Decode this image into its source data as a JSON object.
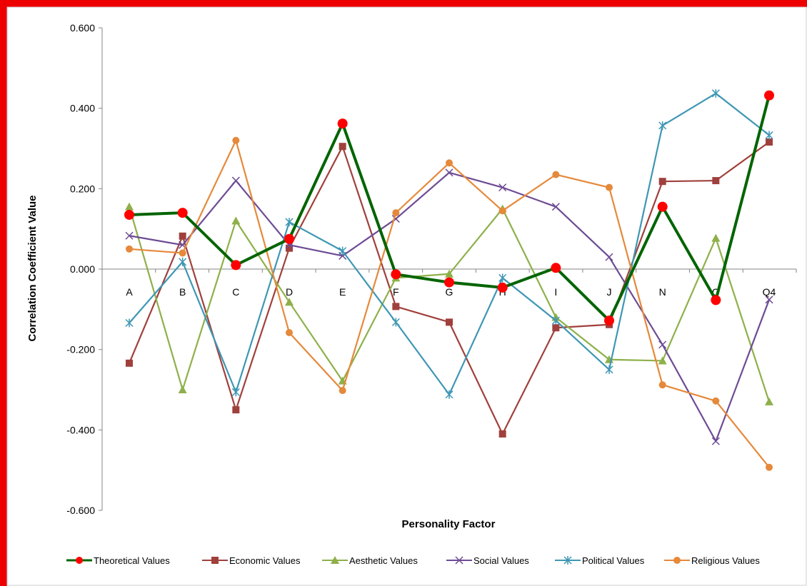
{
  "chart_data": {
    "type": "line",
    "title": "",
    "xlabel": "Personality Factor",
    "ylabel": "Correlation Coefficient Value",
    "ylim": [
      -0.6,
      0.6
    ],
    "yticks": [
      "0.600",
      "0.400",
      "0.200",
      "0.000",
      "-0.200",
      "-0.400",
      "-0.600"
    ],
    "ytick_values": [
      0.6,
      0.4,
      0.2,
      0.0,
      -0.2,
      -0.4,
      -0.6
    ],
    "categories": [
      "A",
      "B",
      "C",
      "D",
      "E",
      "F",
      "G",
      "H",
      "I",
      "J",
      "N",
      "O",
      "Q4"
    ],
    "grid": false,
    "legend_position": "bottom",
    "series": [
      {
        "name": "Theoretical Values",
        "color": "#006400",
        "marker": "circle-red",
        "values": [
          0.135,
          0.14,
          0.01,
          0.075,
          0.362,
          -0.013,
          -0.033,
          -0.046,
          0.003,
          -0.128,
          0.155,
          -0.077,
          0.432
        ]
      },
      {
        "name": "Economic Values",
        "color": "#A0403C",
        "marker": "square",
        "values": [
          -0.234,
          0.082,
          -0.35,
          0.052,
          0.305,
          -0.093,
          -0.132,
          -0.41,
          -0.146,
          -0.138,
          0.218,
          0.22,
          0.316
        ]
      },
      {
        "name": "Aesthetic Values",
        "color": "#8EB04A",
        "marker": "triangle",
        "values": [
          0.155,
          -0.3,
          0.12,
          -0.082,
          -0.278,
          -0.022,
          -0.012,
          0.15,
          -0.12,
          -0.225,
          -0.228,
          0.077,
          -0.33
        ]
      },
      {
        "name": "Social Values",
        "color": "#6D4B94",
        "marker": "x",
        "values": [
          0.083,
          0.06,
          0.22,
          0.06,
          0.033,
          0.125,
          0.24,
          0.203,
          0.155,
          0.03,
          -0.188,
          -0.428,
          -0.076
        ]
      },
      {
        "name": "Political Values",
        "color": "#3E97B4",
        "marker": "star",
        "values": [
          -0.134,
          0.018,
          -0.306,
          0.117,
          0.045,
          -0.132,
          -0.312,
          -0.022,
          -0.128,
          -0.25,
          0.357,
          0.437,
          0.333
        ]
      },
      {
        "name": "Religious Values",
        "color": "#E5893A",
        "marker": "circle",
        "values": [
          0.05,
          0.04,
          0.32,
          -0.158,
          -0.302,
          0.14,
          0.264,
          0.145,
          0.235,
          0.203,
          -0.288,
          -0.328,
          -0.493
        ]
      }
    ]
  },
  "colors": {
    "border": "#EE0000"
  }
}
